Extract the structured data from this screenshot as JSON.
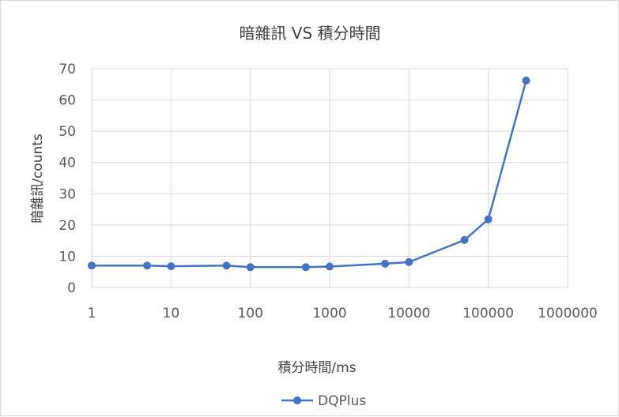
{
  "chart_data": {
    "type": "line",
    "title": "暗雜訊 VS 積分時間",
    "xlabel": "積分時間/ms",
    "ylabel": "暗雜訊/counts",
    "x_scale": "log",
    "xlim": [
      1,
      1000000
    ],
    "ylim": [
      0,
      70
    ],
    "grid": true,
    "legend_position": "bottom",
    "x_tick_labels": [
      "1",
      "10",
      "100",
      "1000",
      "10000",
      "100000",
      "1000000"
    ],
    "y_tick_labels": [
      "0",
      "10",
      "20",
      "30",
      "40",
      "50",
      "60",
      "70"
    ],
    "series": [
      {
        "name": "DQPlus",
        "color": "#4472c4",
        "x": [
          1,
          5,
          10,
          50,
          100,
          500,
          1000,
          5000,
          10000,
          50000,
          100000,
          300000
        ],
        "y": [
          7.0,
          7.0,
          6.8,
          7.0,
          6.5,
          6.5,
          6.7,
          7.6,
          8.1,
          15.2,
          21.8,
          66.2
        ]
      }
    ]
  }
}
